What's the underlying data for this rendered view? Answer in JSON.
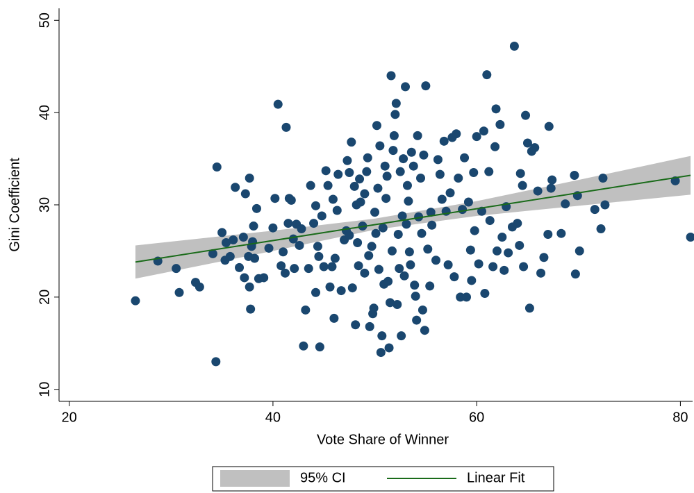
{
  "chart_data": {
    "type": "scatter",
    "xlabel": "Vote Share of Winner",
    "ylabel": "Gini Coefficient",
    "xlim": [
      19,
      81.2
    ],
    "ylim": [
      8.7,
      51.3
    ],
    "xticks": [
      20,
      40,
      60,
      80
    ],
    "yticks": [
      10,
      20,
      30,
      40,
      50
    ],
    "grid": false,
    "legend": "bottom",
    "points": {
      "color": "#1a476f",
      "x": [
        26.5,
        28.7,
        30.5,
        30.8,
        32.4,
        32.8,
        34.1,
        34.4,
        34.5,
        35,
        35.3,
        35.4,
        35.8,
        36.1,
        36.3,
        36.7,
        37.1,
        37.3,
        37.2,
        37.7,
        37.7,
        37.6,
        37.8,
        37.9,
        38,
        38.1,
        38.2,
        38.4,
        38.6,
        39.1,
        39.6,
        40,
        40.2,
        40.5,
        40.8,
        41,
        41.2,
        41.3,
        41.5,
        41.6,
        41.8,
        42,
        42.1,
        42.3,
        42.6,
        42.8,
        43,
        43.2,
        43.5,
        43.7,
        44,
        44.2,
        44.2,
        44.4,
        44.5,
        44.6,
        44.8,
        45,
        45.2,
        45.4,
        45.6,
        45.8,
        45.9,
        46,
        46.1,
        46.3,
        46.4,
        46.7,
        47,
        47.2,
        47.3,
        47.5,
        47.5,
        47.7,
        47.8,
        48,
        48.1,
        48.2,
        48.3,
        48.4,
        48.5,
        48.6,
        48.8,
        49,
        49,
        49.2,
        49.3,
        49.4,
        49.5,
        49.7,
        49.8,
        49.9,
        50,
        50.1,
        50.2,
        50.3,
        50.4,
        50.5,
        50.6,
        50.7,
        50.8,
        50.9,
        51,
        51.1,
        51.2,
        51.3,
        51.4,
        51.5,
        51.6,
        51.7,
        51.8,
        51.9,
        52,
        52.1,
        52.2,
        52.3,
        52.4,
        52.5,
        52.6,
        52.7,
        52.8,
        52.9,
        53,
        53.1,
        53.2,
        53.3,
        53.4,
        53.5,
        53.6,
        53.8,
        53.9,
        54,
        54.1,
        54.2,
        54.3,
        54.5,
        54.6,
        54.7,
        54.8,
        54.9,
        55,
        55.2,
        55.4,
        55.5,
        55.6,
        56,
        56.2,
        56.4,
        56.6,
        56.8,
        57,
        57.2,
        57.4,
        57.6,
        57.8,
        58,
        58.2,
        58.4,
        58.6,
        58.8,
        59,
        59.2,
        59.4,
        59.5,
        59.7,
        59.8,
        60,
        60.2,
        60.5,
        60.7,
        60.8,
        61,
        61.2,
        61.3,
        61.6,
        61.8,
        61.9,
        62,
        62.3,
        62.5,
        62.7,
        62.9,
        63.1,
        63.5,
        63.7,
        64,
        64.2,
        64.3,
        64.5,
        64.6,
        64.8,
        65,
        65.2,
        65.4,
        65.7,
        66,
        66.3,
        66.6,
        67,
        67.1,
        67.3,
        67.4,
        68.3,
        68.7,
        69.6,
        69.7,
        69.9,
        70.1,
        71.6,
        72.2,
        72.4,
        72.6,
        79.5,
        81
      ],
      "y": [
        19.6,
        23.9,
        23.1,
        20.5,
        21.6,
        21.1,
        24.7,
        13,
        34.1,
        27,
        24,
        25.9,
        24.4,
        26.2,
        31.9,
        23.2,
        26.5,
        31.2,
        22.1,
        32.9,
        21.1,
        24.4,
        18.7,
        25.5,
        26,
        27.7,
        24.2,
        29.6,
        22,
        22.1,
        25.3,
        27.5,
        30.7,
        40.9,
        23.4,
        24.9,
        22.6,
        38.4,
        28,
        30.7,
        30.5,
        26.3,
        23.1,
        27.9,
        25.6,
        27.4,
        14.7,
        18.6,
        23.1,
        32.1,
        28,
        29.9,
        20.5,
        25.5,
        24.4,
        14.6,
        28.8,
        23.3,
        33.7,
        32.1,
        21.1,
        23.3,
        30.6,
        17.7,
        24.2,
        29.4,
        33.3,
        20.7,
        26.2,
        27.2,
        34.8,
        33.5,
        26.7,
        36.8,
        21,
        32,
        17,
        30,
        25.9,
        23.4,
        32.8,
        30.3,
        27.7,
        31.2,
        22.6,
        33.6,
        35.1,
        24.5,
        16.8,
        25.5,
        18.2,
        18.8,
        29.2,
        26.9,
        38.6,
        31.8,
        23,
        36.4,
        14,
        15.8,
        27.5,
        21.4,
        34.2,
        30.7,
        33.1,
        21.7,
        14.5,
        19.4,
        44,
        25,
        35.9,
        37.5,
        39.8,
        41,
        19.2,
        26.8,
        23.1,
        33.6,
        15.8,
        28.8,
        35,
        22.3,
        42.8,
        27.9,
        32.1,
        30.4,
        24.9,
        23.5,
        35.7,
        34.2,
        21.3,
        20.1,
        17.5,
        37.5,
        28.7,
        32.9,
        26.9,
        18.6,
        35.4,
        16.4,
        42.9,
        25.2,
        21.2,
        29.2,
        27.8,
        24,
        34.9,
        33.3,
        30.6,
        36.9,
        29.3,
        23.5,
        31.3,
        37.3,
        22.2,
        37.7,
        32.9,
        20,
        29.5,
        35.1,
        20,
        30.3,
        25.1,
        21.8,
        33.5,
        27.2,
        37.4,
        23.6,
        29.3,
        38,
        20.4,
        44.1,
        33.6,
        28.3,
        23.3,
        36.3,
        40.4,
        25,
        38.7,
        26.5,
        22.9,
        29.8,
        24.8,
        27.6,
        47.2,
        28,
        25.6,
        33.4,
        32.1,
        23.3,
        39.7,
        36.7,
        18.8,
        35.8,
        36.2,
        31.5,
        22.6,
        24.3,
        26.8,
        38.5,
        31.8,
        32.7,
        26.9,
        30.1,
        33.2,
        22.5,
        31,
        25,
        29.5,
        27.4,
        32.9,
        30,
        32.6,
        26.5
      ]
    },
    "series": [
      {
        "name": "95% CI",
        "type": "area",
        "color": "#c0c0c0",
        "x": [
          26.5,
          40,
          50,
          60,
          70,
          81
        ],
        "lower": [
          22,
          25,
          27.3,
          28.8,
          29.9,
          31.1
        ],
        "upper": [
          25.6,
          27.2,
          28.5,
          30.4,
          32.7,
          35.3
        ]
      },
      {
        "name": "Linear Fit",
        "type": "line",
        "color": "#1a6b1a",
        "x": [
          26.5,
          81
        ],
        "values": [
          23.8,
          33.2
        ]
      }
    ]
  }
}
